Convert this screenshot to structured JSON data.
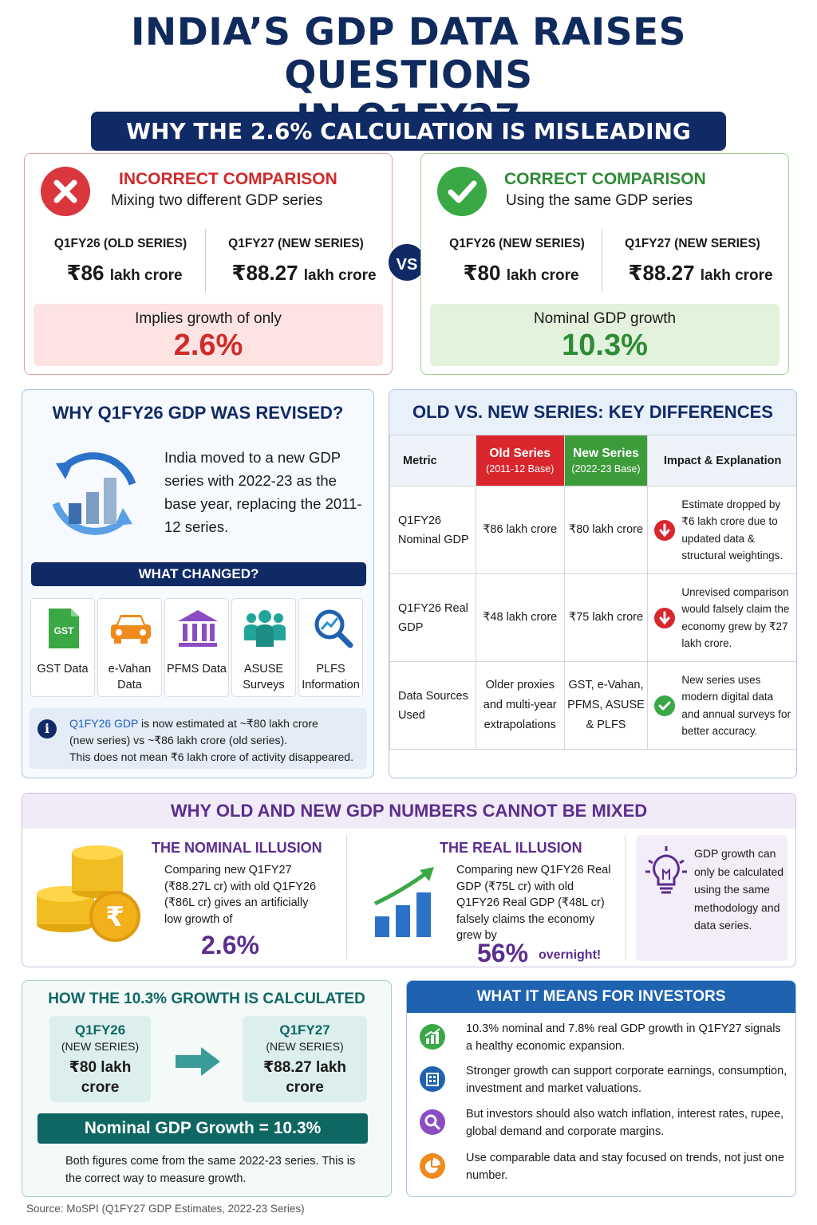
{
  "title": {
    "line1": "INDIA’S GDP DATA RAISES QUESTIONS",
    "line2": "IN Q1FY27"
  },
  "banner": "WHY THE 2.6% CALCULATION IS MISLEADING",
  "incorrect": {
    "heading": "INCORRECT COMPARISON",
    "subheading": "Mixing two different GDP series",
    "col1_label": "Q1FY26 (OLD SERIES)",
    "col1_num": "₹86",
    "col1_unit": "lakh crore",
    "col2_label": "Q1FY27  (NEW SERIES)",
    "col2_num": "₹88.27",
    "col2_unit": "lakh crore",
    "result_label": "Implies growth of only",
    "result_value": "2.6%",
    "icon": "cross-icon",
    "color": "#d02a2a"
  },
  "vs": "VS",
  "correct": {
    "heading": "CORRECT COMPARISON",
    "subheading": "Using the same GDP series",
    "col1_label": "Q1FY26 (NEW SERIES)",
    "col1_num": "₹80",
    "col1_unit": "lakh crore",
    "col2_label": "Q1FY27  (NEW SERIES)",
    "col2_num": "₹88.27",
    "col2_unit": "lakh crore",
    "result_label": "Nominal GDP growth",
    "result_value": "10.3%",
    "icon": "check-icon",
    "color": "#2e8b36"
  },
  "revised": {
    "heading": "WHY Q1FY26 GDP WAS REVISED?",
    "text": "India moved to a new GDP series with 2022-23 as the base year, replacing the 2011-12 series.",
    "what_changed": "WHAT CHANGED?",
    "tiles": [
      {
        "label1": "GST Data",
        "label2": "",
        "icon": "gst-document-icon"
      },
      {
        "label1": "e-Vahan",
        "label2": "Data",
        "icon": "car-icon"
      },
      {
        "label1": "PFMS Data",
        "label2": "",
        "icon": "bank-building-icon"
      },
      {
        "label1": "ASUSE",
        "label2": "Surveys",
        "icon": "people-icon"
      },
      {
        "label1": "PLFS",
        "label2": "Information",
        "icon": "magnifier-chart-icon"
      }
    ],
    "gst_badge": "GST",
    "info_highlight": "Q1FY26 GDP",
    "info_line1_rest": " is now estimated at ~₹80 lakh crore",
    "info_line2": "(new series) vs ~₹86 lakh crore (old series).",
    "info_line3": "This does not mean ₹6 lakh crore of activity disappeared.",
    "info_icon": "i"
  },
  "table": {
    "heading": "OLD VS. NEW SERIES: KEY DIFFERENCES",
    "headers": {
      "metric": "Metric",
      "old": "Old Series",
      "old_sub": "(2011-12 Base)",
      "new": "New Series",
      "new_sub": "(2022-23 Base)",
      "impact": "Impact & Explanation"
    },
    "rows": [
      {
        "metric": "Q1FY26 Nominal GDP",
        "old": "₹86 lakh crore",
        "new": "₹80 lakh crore",
        "impact": "Estimate dropped by ₹6 lakh crore due to updated data & structural weightings.",
        "icon": "down-arrow-icon"
      },
      {
        "metric": "Q1FY26 Real GDP",
        "old": "₹48 lakh crore",
        "new": "₹75 lakh crore",
        "impact": "Unrevised comparison would falsely claim the economy grew by ₹27 lakh crore.",
        "icon": "down-arrow-icon"
      },
      {
        "metric": "Data Sources Used",
        "old": "Older proxies and multi-year extrapolations",
        "new": "GST, e-Vahan, PFMS, ASUSE & PLFS",
        "impact": "New series uses modern digital data and annual surveys for better accuracy.",
        "icon": "check-icon"
      }
    ]
  },
  "mixed": {
    "heading": "WHY OLD AND NEW GDP NUMBERS CANNOT BE MIXED",
    "nominal_title": "THE NOMINAL ILLUSION",
    "nominal_text": "Comparing new Q1FY27 (₹88.27L cr) with old Q1FY26 (₹86L cr) gives  an artificially low growth of",
    "nominal_value": "2.6%",
    "real_title": "THE REAL ILLUSION",
    "real_text": "Comparing new Q1FY26 Real GDP (₹75L cr) with old Q1FY26 Real GDP (₹48L cr) falsely claims the economy grew by",
    "real_value": "56%",
    "real_suffix": "overnight!",
    "tip_text": "GDP growth can only be calculated using the same methodology and data series."
  },
  "calc": {
    "heading": "HOW THE 10.3% GROWTH IS CALCULATED",
    "box1_title": "Q1FY26",
    "box1_sub": "(NEW SERIES)",
    "box1_value": "₹80 lakh crore",
    "box2_title": "Q1FY27",
    "box2_sub": "(NEW SERIES)",
    "box2_value": "₹88.27 lakh crore",
    "result": "Nominal GDP Growth = 10.3%",
    "foot": "Both figures come from the same 2022-23 series. This is the correct way to measure growth."
  },
  "investors": {
    "heading": "WHAT IT MEANS FOR INVESTORS",
    "items": [
      {
        "text": "10.3% nominal and 7.8% real GDP growth in Q1FY27 signals a healthy economic expansion.",
        "icon": "growth-chart-icon",
        "color": "#3aa845"
      },
      {
        "text": "Stronger growth can support corporate earnings, consumption, investment and market valuations.",
        "icon": "building-icon",
        "color": "#1e62b0"
      },
      {
        "text": "But investors should also watch inflation, interest rates, rupee, global demand and corporate margins.",
        "icon": "search-icon",
        "color": "#8b4cc4"
      },
      {
        "text": "Use comparable data and stay focused on trends, not just one number.",
        "icon": "pie-chart-icon",
        "color": "#f08a1c"
      }
    ]
  },
  "source": "Source: MoSPI (Q1FY27 GDP Estimates, 2022-23 Series)"
}
